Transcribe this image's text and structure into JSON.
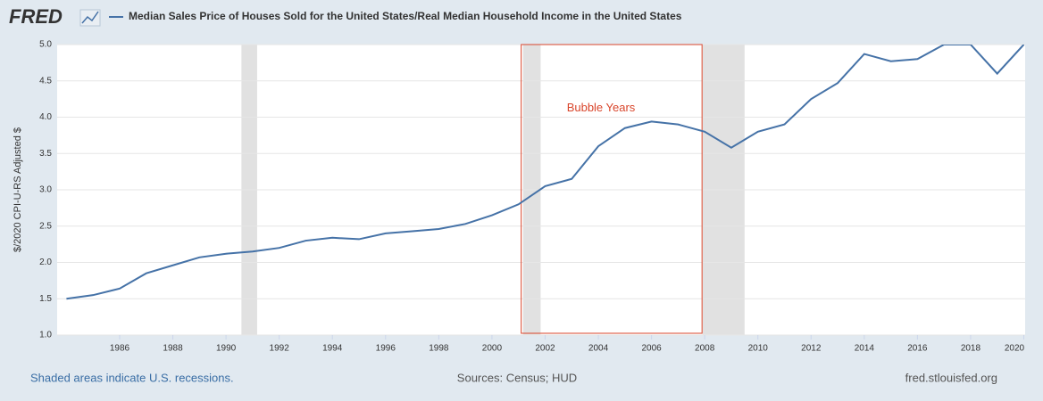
{
  "logo": "FRED",
  "chart_data": {
    "type": "line",
    "title": "Median Sales Price of Houses Sold for the United States/Real Median Household Income in the United States",
    "y_label": "$/2020 CPI-U-RS Adjusted $",
    "x": [
      1984,
      1985,
      1986,
      1987,
      1988,
      1989,
      1990,
      1991,
      1992,
      1993,
      1994,
      1995,
      1996,
      1997,
      1998,
      1999,
      2000,
      2001,
      2002,
      2003,
      2004,
      2005,
      2006,
      2007,
      2008,
      2009,
      2010,
      2011,
      2012,
      2013,
      2014,
      2015,
      2016,
      2017,
      2018,
      2019,
      2020
    ],
    "series": [
      {
        "name": "Median Sales Price of Houses Sold for the United States/Real Median Household Income in the United States",
        "color": "#4572a7",
        "values": [
          1.5,
          1.55,
          1.64,
          1.85,
          1.96,
          2.07,
          2.12,
          2.15,
          2.2,
          2.3,
          2.34,
          2.32,
          2.4,
          2.43,
          2.46,
          2.53,
          2.65,
          2.8,
          3.05,
          3.15,
          3.6,
          3.85,
          3.94,
          3.9,
          3.8,
          3.58,
          3.8,
          3.9,
          4.25,
          4.47,
          4.87,
          4.77,
          4.8,
          5.0,
          5.0,
          4.6,
          5.0
        ]
      }
    ],
    "xlim": [
      1983.65,
      2020.05
    ],
    "ylim": [
      1.0,
      5.0
    ],
    "xticks": [
      1986,
      1988,
      1990,
      1992,
      1994,
      1996,
      1998,
      2000,
      2002,
      2004,
      2006,
      2008,
      2010,
      2012,
      2014,
      2016,
      2018,
      2020
    ],
    "yticks": [
      {
        "value": 1.0,
        "label": "1.0"
      },
      {
        "value": 1.5,
        "label": "1.5"
      },
      {
        "value": 2.0,
        "label": "2.0"
      },
      {
        "value": 2.5,
        "label": "2.5"
      },
      {
        "value": 3.0,
        "label": "3.0"
      },
      {
        "value": 3.5,
        "label": "3.5"
      },
      {
        "value": 4.0,
        "label": "4.0"
      },
      {
        "value": 4.5,
        "label": "4.5"
      },
      {
        "value": 5.0,
        "label": "5.0"
      }
    ],
    "grid": true,
    "recessions": [
      [
        1990.58,
        1991.17
      ],
      [
        2001.17,
        2001.83
      ],
      [
        2007.92,
        2009.5
      ]
    ],
    "highlight": {
      "x": [
        2001.1,
        2007.9
      ],
      "color": "#d9452b"
    },
    "annotation": {
      "text": "Bubble Years",
      "x": 2004.1,
      "y": 4.12
    }
  },
  "footer": {
    "left": "Shaded areas indicate U.S. recessions.",
    "center": "Sources: Census; HUD",
    "right": "fred.stlouisfed.org"
  }
}
